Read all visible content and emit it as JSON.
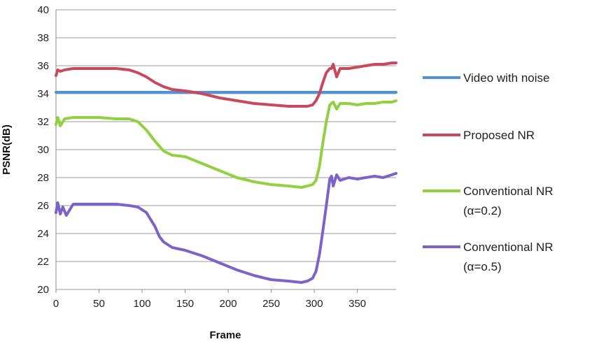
{
  "chart_data": {
    "type": "line",
    "xlabel": "Frame",
    "ylabel": "PSNR(dB)",
    "xlim": [
      0,
      395
    ],
    "ylim": [
      20,
      40
    ],
    "xticks": [
      0,
      50,
      100,
      150,
      200,
      250,
      300,
      350
    ],
    "yticks": [
      20,
      22,
      24,
      26,
      28,
      30,
      32,
      34,
      36,
      38,
      40
    ],
    "grid": "horizontal",
    "legend_position": "right",
    "series": [
      {
        "name": "Video with noise",
        "color": "#4f93d6",
        "x": [
          0,
          395
        ],
        "y": [
          34.1,
          34.1
        ]
      },
      {
        "name": "Proposed NR",
        "color": "#c9485c",
        "x": [
          0,
          2,
          5,
          10,
          20,
          30,
          50,
          70,
          85,
          95,
          105,
          115,
          125,
          135,
          150,
          170,
          190,
          210,
          230,
          250,
          270,
          285,
          292,
          298,
          302,
          306,
          310,
          314,
          318,
          320,
          322,
          326,
          330,
          340,
          350,
          360,
          370,
          380,
          390,
          395
        ],
        "y": [
          35.3,
          35.7,
          35.6,
          35.7,
          35.8,
          35.8,
          35.8,
          35.8,
          35.7,
          35.5,
          35.2,
          34.8,
          34.5,
          34.3,
          34.2,
          34.0,
          33.7,
          33.5,
          33.3,
          33.2,
          33.1,
          33.1,
          33.1,
          33.2,
          33.5,
          34.0,
          34.8,
          35.5,
          35.8,
          35.8,
          36.1,
          35.2,
          35.8,
          35.8,
          35.9,
          36.0,
          36.1,
          36.1,
          36.2,
          36.2
        ]
      },
      {
        "name": "Conventional NR",
        "name2": "(α=0.2)",
        "color": "#8fd13f",
        "x": [
          0,
          2,
          5,
          10,
          20,
          30,
          50,
          70,
          85,
          95,
          105,
          115,
          125,
          135,
          150,
          170,
          190,
          210,
          230,
          250,
          270,
          285,
          292,
          298,
          302,
          306,
          310,
          314,
          318,
          320,
          322,
          326,
          330,
          340,
          350,
          360,
          370,
          380,
          390,
          395
        ],
        "y": [
          31.8,
          32.3,
          31.7,
          32.2,
          32.3,
          32.3,
          32.3,
          32.2,
          32.2,
          32.0,
          31.4,
          30.6,
          29.9,
          29.6,
          29.5,
          29.0,
          28.5,
          28.0,
          27.7,
          27.5,
          27.4,
          27.3,
          27.4,
          27.5,
          27.8,
          28.8,
          30.5,
          32.0,
          33.2,
          33.3,
          33.4,
          32.9,
          33.3,
          33.3,
          33.2,
          33.3,
          33.3,
          33.4,
          33.4,
          33.5
        ]
      },
      {
        "name": "Conventional NR",
        "name2": "(α=o.5)",
        "color": "#7b63c9",
        "x": [
          0,
          2,
          5,
          8,
          12,
          20,
          30,
          50,
          70,
          85,
          95,
          105,
          115,
          120,
          125,
          135,
          150,
          170,
          190,
          210,
          230,
          250,
          270,
          285,
          292,
          298,
          302,
          306,
          310,
          314,
          318,
          320,
          322,
          326,
          330,
          340,
          350,
          360,
          370,
          380,
          390,
          395
        ],
        "y": [
          25.5,
          26.2,
          25.4,
          25.9,
          25.3,
          26.1,
          26.1,
          26.1,
          26.1,
          26.0,
          25.9,
          25.5,
          24.5,
          23.8,
          23.4,
          23.0,
          22.8,
          22.4,
          21.9,
          21.4,
          21.0,
          20.7,
          20.6,
          20.5,
          20.6,
          20.8,
          21.3,
          22.5,
          24.2,
          26.0,
          27.9,
          28.1,
          27.4,
          28.2,
          27.8,
          28.0,
          27.9,
          28.0,
          28.1,
          28.0,
          28.2,
          28.3
        ]
      }
    ]
  }
}
